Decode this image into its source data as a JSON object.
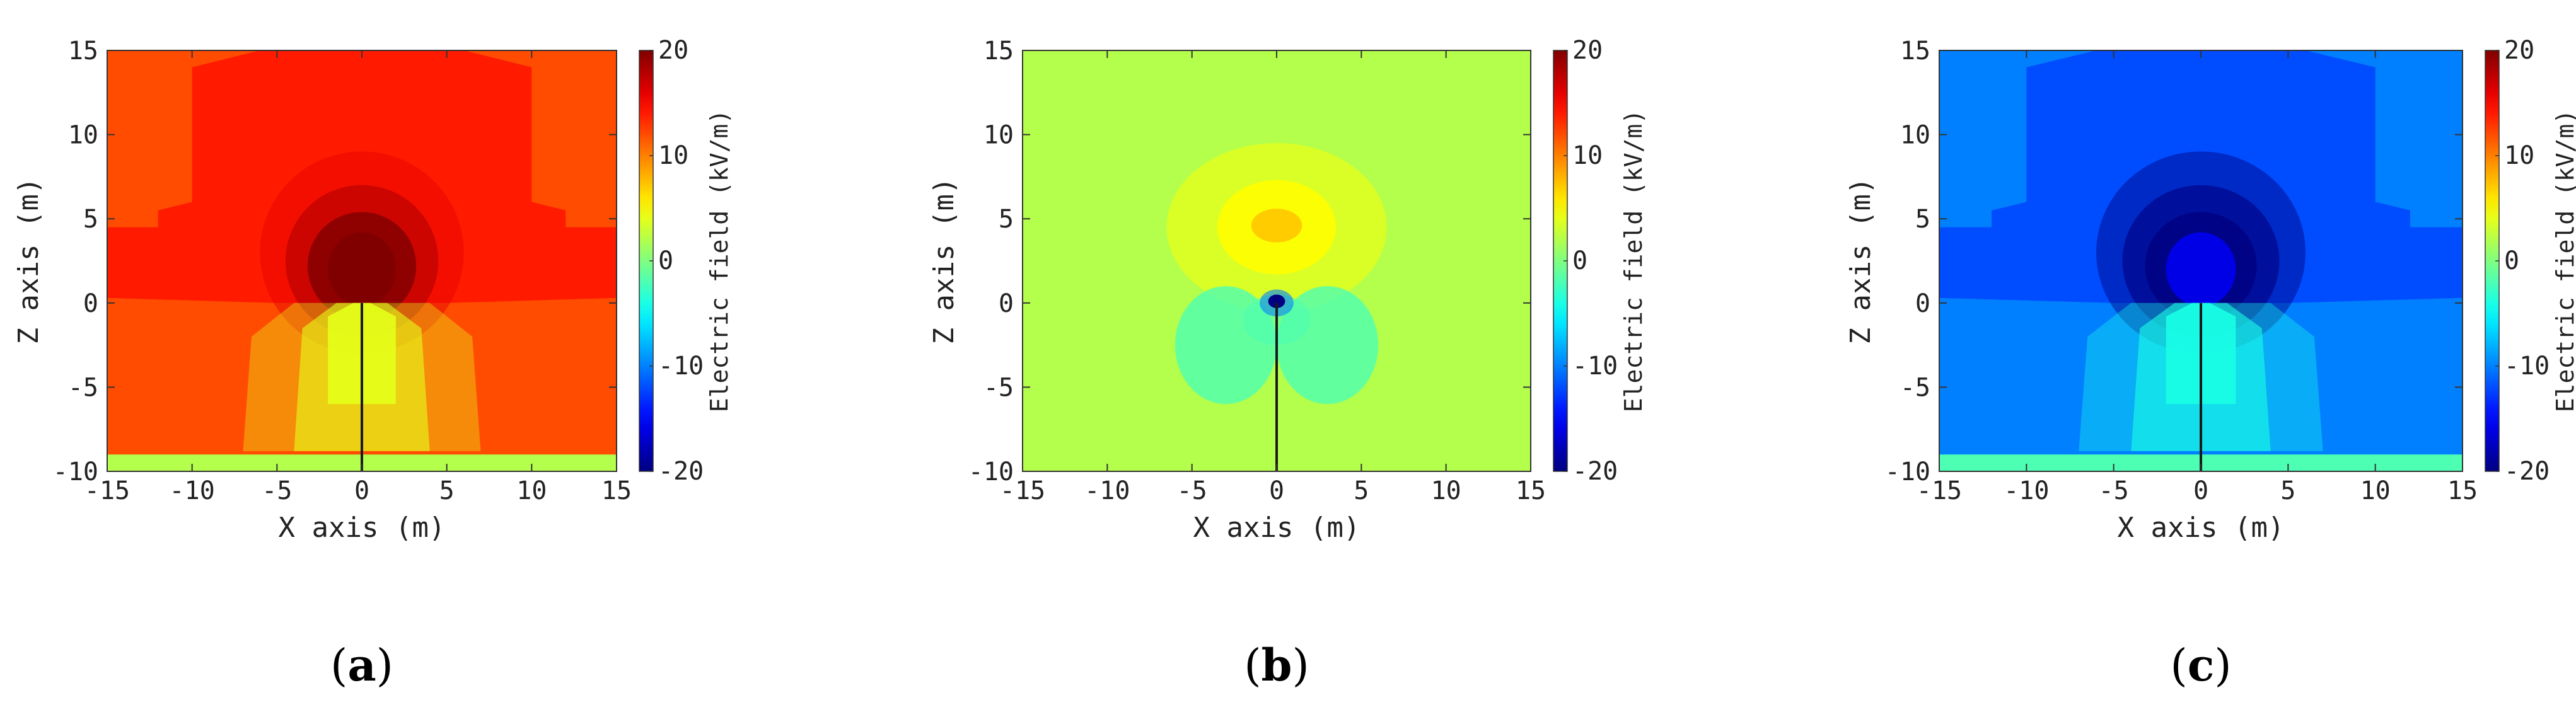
{
  "chart_data": [
    {
      "type": "heatmap",
      "panel_label": "a",
      "xlabel": "X axis (m)",
      "ylabel": "Z axis (m)",
      "xlim": [
        -15,
        15
      ],
      "ylim": [
        -10,
        15
      ],
      "xticks": [
        "-15",
        "-10",
        "-5",
        "0",
        "5",
        "10",
        "15"
      ],
      "yticks": [
        "-10",
        "-5",
        "0",
        "5",
        "10",
        "15"
      ],
      "colorbar": {
        "label": "Electric field (kV/m)",
        "range": [
          -20,
          20
        ],
        "ticks": [
          "20",
          "10",
          "0",
          "-10",
          "-20"
        ],
        "colormap": "jet"
      },
      "background_value": 12,
      "regions": [
        {
          "value": 14,
          "shape": "upper-plume"
        },
        {
          "value": 20,
          "shape": "tip-core"
        },
        {
          "value": 4,
          "shape": "lower-lobes"
        },
        {
          "value": 2,
          "shape": "ground-strip"
        }
      ]
    },
    {
      "type": "heatmap",
      "panel_label": "b",
      "xlabel": "X axis (m)",
      "ylabel": "Z axis (m)",
      "xlim": [
        -15,
        15
      ],
      "ylim": [
        -10,
        15
      ],
      "xticks": [
        "-15",
        "-10",
        "-5",
        "0",
        "5",
        "10",
        "15"
      ],
      "yticks": [
        "-10",
        "-5",
        "0",
        "5",
        "10",
        "15"
      ],
      "colorbar": {
        "label": "Electric field (kV/m)",
        "range": [
          -20,
          20
        ],
        "ticks": [
          "20",
          "10",
          "0",
          "-10",
          "-20"
        ],
        "colormap": "jet"
      },
      "background_value": 2,
      "regions": [
        {
          "value": 5,
          "shape": "upper-lobe"
        },
        {
          "value": -2,
          "shape": "lower-lobes"
        },
        {
          "value": -20,
          "shape": "tip-point"
        }
      ]
    },
    {
      "type": "heatmap",
      "panel_label": "c",
      "xlabel": "X axis (m)",
      "ylabel": "Z axis (m)",
      "xlim": [
        -15,
        15
      ],
      "ylim": [
        -10,
        15
      ],
      "xticks": [
        "-15",
        "-10",
        "-5",
        "0",
        "5",
        "10",
        "15"
      ],
      "yticks": [
        "-10",
        "-5",
        "0",
        "5",
        "10",
        "15"
      ],
      "colorbar": {
        "label": "Electric field (kV/m)",
        "range": [
          -20,
          20
        ],
        "ticks": [
          "20",
          "10",
          "0",
          "-10",
          "-20"
        ],
        "colormap": "jet"
      },
      "background_value": -10,
      "regions": [
        {
          "value": -12,
          "shape": "upper-plume"
        },
        {
          "value": -20,
          "shape": "tip-core"
        },
        {
          "value": -4,
          "shape": "lower-lobes"
        },
        {
          "value": -2,
          "shape": "ground-strip"
        }
      ]
    }
  ]
}
